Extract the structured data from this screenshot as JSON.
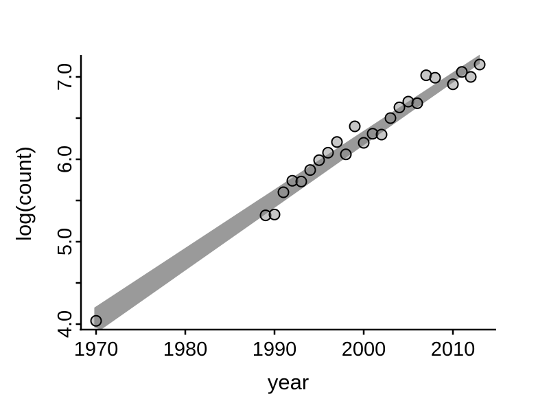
{
  "chart_data": {
    "type": "scatter",
    "title": "",
    "xlabel": "year",
    "ylabel": "log(count)",
    "x_ticks": [
      1970,
      1980,
      1990,
      2000,
      2010
    ],
    "y_ticks": [
      4.0,
      5.0,
      6.0,
      7.0
    ],
    "y_minor_ticks": [
      4.5,
      5.5,
      6.5
    ],
    "xlim": [
      1968.3,
      2014.7
    ],
    "ylim": [
      3.93,
      7.35
    ],
    "grid": false,
    "legend": "none",
    "points": [
      {
        "year": 1970,
        "log_count": 4.04
      },
      {
        "year": 1989,
        "log_count": 5.32
      },
      {
        "year": 1990,
        "log_count": 5.33
      },
      {
        "year": 1991,
        "log_count": 5.6
      },
      {
        "year": 1992,
        "log_count": 5.74
      },
      {
        "year": 1993,
        "log_count": 5.73
      },
      {
        "year": 1994,
        "log_count": 5.87
      },
      {
        "year": 1995,
        "log_count": 5.99
      },
      {
        "year": 1996,
        "log_count": 6.08
      },
      {
        "year": 1997,
        "log_count": 6.21
      },
      {
        "year": 1998,
        "log_count": 6.06
      },
      {
        "year": 1999,
        "log_count": 6.4
      },
      {
        "year": 2000,
        "log_count": 6.2
      },
      {
        "year": 2001,
        "log_count": 6.31
      },
      {
        "year": 2002,
        "log_count": 6.3
      },
      {
        "year": 2003,
        "log_count": 6.5
      },
      {
        "year": 2004,
        "log_count": 6.63
      },
      {
        "year": 2005,
        "log_count": 6.7
      },
      {
        "year": 2006,
        "log_count": 6.68
      },
      {
        "year": 2007,
        "log_count": 7.02
      },
      {
        "year": 2008,
        "log_count": 6.99
      },
      {
        "year": 2010,
        "log_count": 6.91
      },
      {
        "year": 2011,
        "log_count": 7.06
      },
      {
        "year": 2012,
        "log_count": 7.0
      },
      {
        "year": 2013,
        "log_count": 7.15
      }
    ],
    "regression_band": {
      "x_start": 1969.8,
      "x_end": 2013.0,
      "top_start": 4.2,
      "top_end": 7.27,
      "bottom_start": 3.96,
      "bottom_end": 7.16
    },
    "colors": {
      "background": "#ffffff",
      "band": "#9a9a9a",
      "point_fill": "#868686",
      "point_fill_opacity": 0.46,
      "point_stroke": "#000000",
      "axis": "#000000",
      "text": "#000000"
    }
  }
}
